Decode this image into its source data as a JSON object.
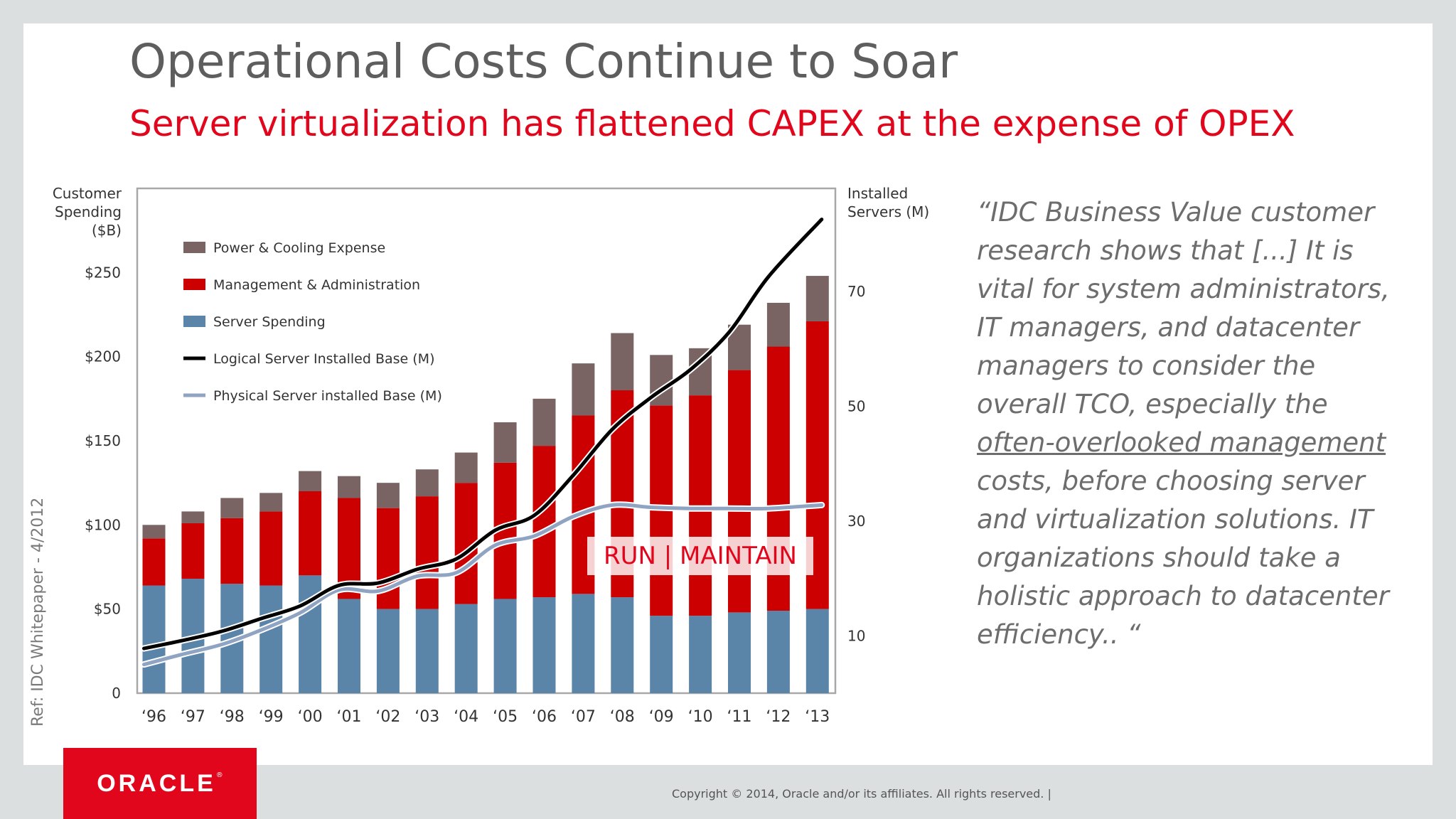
{
  "slide": {
    "title": "Operational Costs Continue to Soar",
    "subtitle": "Server virtualization has flattened CAPEX at the expense of OPEX",
    "quote_part1": "“IDC Business Value customer research shows that [...] It is vital for system administrators, IT managers, and datacenter managers to consider the overall TCO, especially the ",
    "quote_underlined": "often-overlooked management",
    "quote_part2": " costs, before choosing server and virtualization solutions. IT organizations should take a holistic approach to datacenter efficiency.. “",
    "reference": "Ref:  IDC Whitepaper - 4/2012",
    "copyright": "Copyright © 2014, Oracle and/or its affiliates. All rights reserved.  |",
    "logo_text": "ORACLE",
    "logo_mark": "®",
    "colors": {
      "power_cooling": "#7a6363",
      "management": "#cc0000",
      "server": "#5b85a8",
      "logical": "#000000",
      "physical": "#8fa3c2",
      "accent": "#e2061d"
    }
  },
  "chart_data": {
    "type": "bar",
    "stacked": true,
    "categories": [
      "‘96",
      "‘97",
      "‘98",
      "‘99",
      "‘00",
      "‘01",
      "‘02",
      "‘03",
      "‘04",
      "‘05",
      "‘06",
      "‘07",
      "‘08",
      "‘09",
      "‘10",
      "‘11",
      "‘12",
      "‘13"
    ],
    "ylabel": "Customer Spending ($B)",
    "y2label": "Installed Servers (M)",
    "ylim": [
      0,
      300
    ],
    "y2lim": [
      0,
      88
    ],
    "yticks": [
      0,
      50,
      100,
      150,
      200,
      250
    ],
    "ytick_labels": [
      "0",
      "$50",
      "$100",
      "$150",
      "$200",
      "$250"
    ],
    "y2ticks": [
      10,
      30,
      50,
      70
    ],
    "y2tick_labels": [
      "10",
      "30",
      "50",
      "70"
    ],
    "series": [
      {
        "name": "Power & Cooling Expense",
        "kind": "bar",
        "color": "#7a6363",
        "values": [
          8,
          7,
          12,
          11,
          12,
          13,
          15,
          16,
          18,
          24,
          28,
          31,
          34,
          30,
          28,
          27,
          26,
          27
        ]
      },
      {
        "name": "Management & Administration",
        "kind": "bar",
        "color": "#cc0000",
        "values": [
          28,
          33,
          39,
          44,
          50,
          60,
          60,
          67,
          72,
          81,
          90,
          106,
          123,
          125,
          131,
          144,
          157,
          171
        ]
      },
      {
        "name": "Server Spending",
        "kind": "bar",
        "color": "#5b85a8",
        "values": [
          64,
          68,
          65,
          64,
          70,
          56,
          50,
          50,
          53,
          56,
          57,
          59,
          57,
          46,
          46,
          48,
          49,
          50
        ]
      },
      {
        "name": "Logical Server Installed Base (M)",
        "kind": "line",
        "axis": "y2",
        "color": "#000000",
        "values": [
          7.8,
          9.2,
          10.8,
          13,
          15.2,
          18.8,
          19.2,
          21.6,
          23.4,
          28.4,
          31,
          38,
          46,
          51.6,
          56.4,
          63,
          72.6,
          82.6
        ]
      },
      {
        "name": "Physical Server installed Base (M)",
        "kind": "line",
        "axis": "y2",
        "color": "#8fa3c2",
        "values": [
          5,
          6.8,
          8.5,
          11,
          14,
          18,
          17.8,
          20.4,
          21,
          25.8,
          27.4,
          30.8,
          32.8,
          32.4,
          32.2,
          32.2,
          32.2,
          32.8
        ]
      }
    ],
    "annotation": "RUN | MAINTAIN",
    "legend_position": "top-left"
  }
}
